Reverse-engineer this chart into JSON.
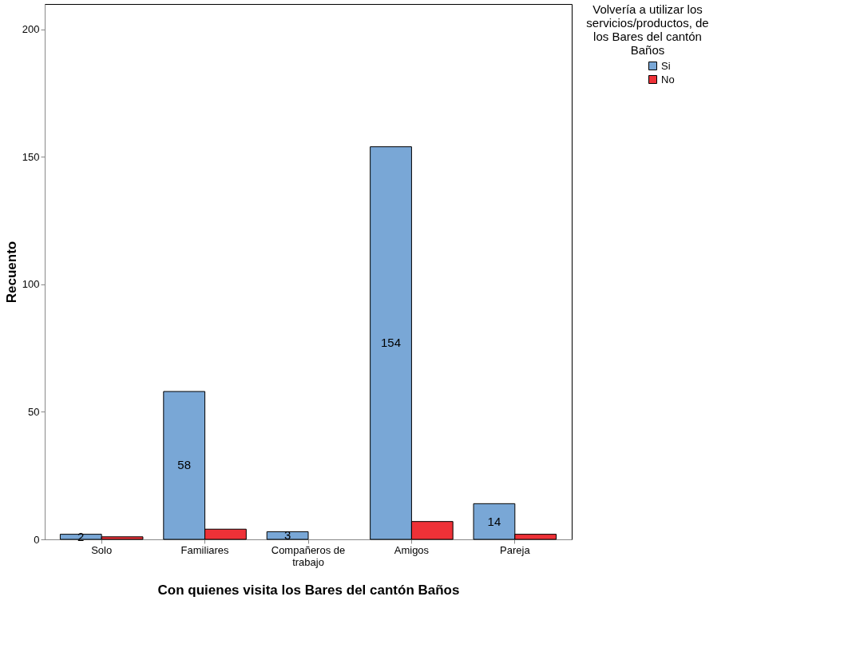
{
  "chart_data": {
    "type": "bar",
    "xlabel": "Con quienes visita los Bares del cantón Baños",
    "ylabel": "Recuento",
    "legend_title": "Volvería a utilizar los servicios/productos, de los Bares del cantón Baños",
    "categories": [
      "Solo",
      "Familiares",
      "Compañeros de trabajo",
      "Amigos",
      "Pareja"
    ],
    "series": [
      {
        "name": "Si",
        "color": "#79a7d6",
        "values": [
          2,
          58,
          3,
          154,
          14
        ],
        "value_labels": [
          "2",
          "58",
          "3",
          "154",
          "14"
        ]
      },
      {
        "name": "No",
        "color": "#ee3137",
        "values": [
          1,
          4,
          null,
          7,
          2
        ]
      }
    ],
    "ylim": [
      0,
      210
    ],
    "yticks": [
      0,
      50,
      100,
      150,
      200
    ],
    "grid": false,
    "legend": "top right"
  }
}
